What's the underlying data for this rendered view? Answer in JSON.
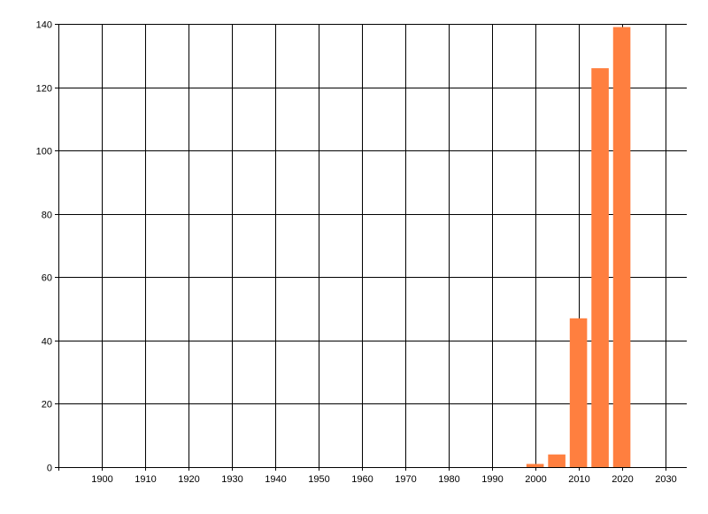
{
  "chart_data": {
    "type": "bar",
    "title": "",
    "xlabel": "",
    "ylabel": "",
    "x": [
      2000,
      2005,
      2010,
      2015,
      2020
    ],
    "values": [
      1,
      4,
      47,
      126,
      139
    ],
    "bar_width_years": 4,
    "xlim": [
      1890,
      2035
    ],
    "ylim": [
      0,
      140
    ],
    "xticks": [
      1900,
      1910,
      1920,
      1930,
      1940,
      1950,
      1960,
      1970,
      1980,
      1990,
      2000,
      2010,
      2020,
      2030
    ],
    "yticks": [
      0,
      20,
      40,
      60,
      80,
      100,
      120,
      140
    ],
    "grid": true,
    "legend": "none",
    "bar_color": "#ff7f3f"
  }
}
